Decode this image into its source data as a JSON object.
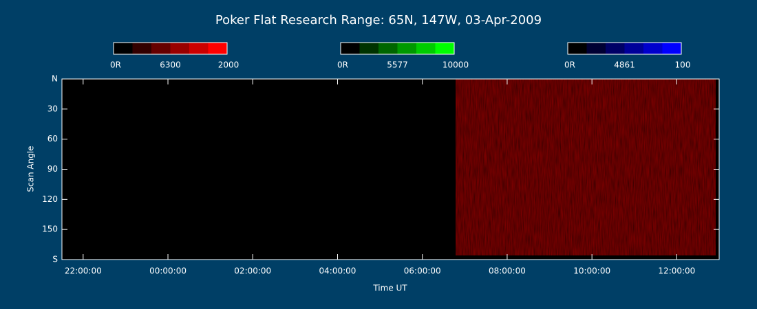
{
  "chart_data": {
    "type": "heatmap",
    "title": "Poker Flat Research Range: 65N, 147W, 03-Apr-2009",
    "xlabel": "Time UT",
    "ylabel": "Scan Angle",
    "xlim": [
      -2.5,
      13
    ],
    "xticks": [
      {
        "value": -2,
        "label": "22:00:00"
      },
      {
        "value": 0,
        "label": "00:00:00"
      },
      {
        "value": 2,
        "label": "02:00:00"
      },
      {
        "value": 4,
        "label": "04:00:00"
      },
      {
        "value": 6,
        "label": "06:00:00"
      },
      {
        "value": 8,
        "label": "08:00:00"
      },
      {
        "value": 10,
        "label": "10:00:00"
      },
      {
        "value": 12,
        "label": "12:00:00"
      }
    ],
    "ylim": [
      0,
      180
    ],
    "yticks": [
      {
        "value": 0,
        "label": "N"
      },
      30,
      60,
      90,
      120,
      150,
      {
        "value": 180,
        "label": "S"
      }
    ],
    "colorbars": [
      {
        "name": "6300",
        "min_label": "0R",
        "max": 2000,
        "colors": [
          "#000000",
          "#330000",
          "#660000",
          "#990000",
          "#cc0000",
          "#ff0000"
        ]
      },
      {
        "name": "5577",
        "min_label": "0R",
        "max": 10000,
        "colors": [
          "#000000",
          "#003300",
          "#006600",
          "#009900",
          "#00cc00",
          "#00ff00"
        ]
      },
      {
        "name": "4861",
        "min_label": "0R",
        "max": 100,
        "colors": [
          "#000000",
          "#000033",
          "#000066",
          "#000099",
          "#0000cc",
          "#0000ff"
        ]
      }
    ]
  }
}
